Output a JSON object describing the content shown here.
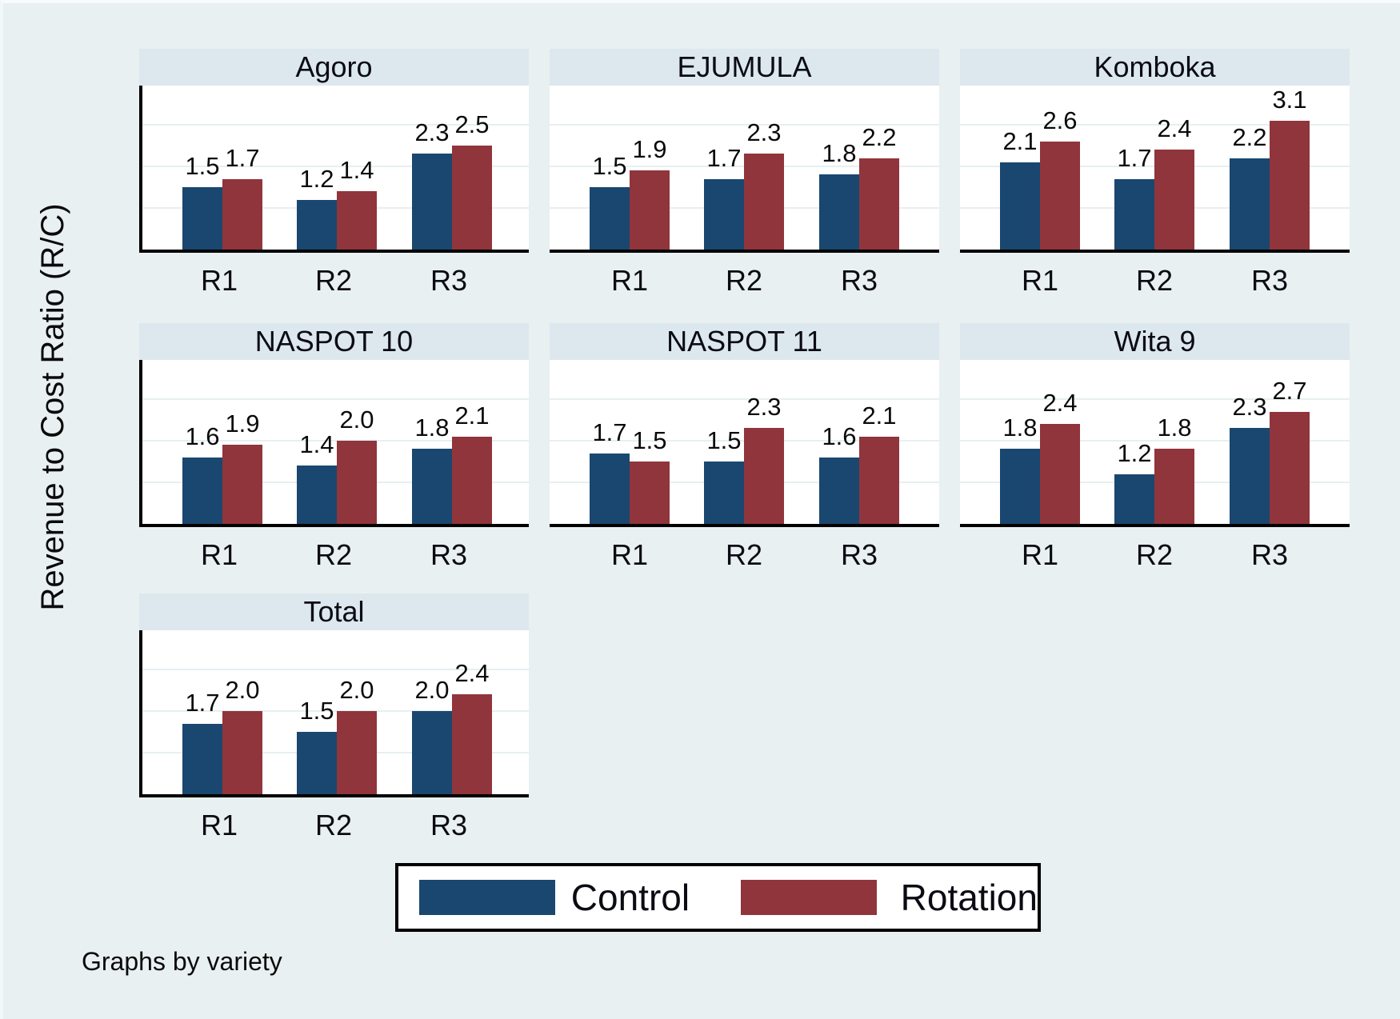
{
  "chart_data": {
    "type": "bar",
    "ylabel": "Revenue to Cost Ratio (R/C)",
    "note": "Graphs by variety",
    "categories": [
      "R1",
      "R2",
      "R3"
    ],
    "yticks": [
      0,
      1,
      2,
      3
    ],
    "ylim": [
      0,
      4
    ],
    "grid": true,
    "legend_position": "bottom",
    "series_names": [
      "Control",
      "Rotation"
    ],
    "colors": {
      "control": "#1a476f",
      "rotation": "#90353b"
    },
    "panels": [
      {
        "title": "Agoro",
        "control": [
          1.5,
          1.2,
          2.3
        ],
        "rotation": [
          1.7,
          1.4,
          2.5
        ]
      },
      {
        "title": "EJUMULA",
        "control": [
          1.5,
          1.7,
          1.8
        ],
        "rotation": [
          1.9,
          2.3,
          2.2
        ]
      },
      {
        "title": "Komboka",
        "control": [
          2.1,
          1.7,
          2.2
        ],
        "rotation": [
          2.6,
          2.4,
          3.1
        ]
      },
      {
        "title": "NASPOT 10",
        "control": [
          1.6,
          1.4,
          1.8
        ],
        "rotation": [
          1.9,
          2.0,
          2.1
        ]
      },
      {
        "title": "NASPOT 11",
        "control": [
          1.7,
          1.5,
          1.6
        ],
        "rotation": [
          1.5,
          2.3,
          2.1
        ]
      },
      {
        "title": "Wita 9",
        "control": [
          1.8,
          1.2,
          2.3
        ],
        "rotation": [
          2.4,
          1.8,
          2.7
        ]
      },
      {
        "title": "Total",
        "control": [
          1.7,
          1.5,
          2.0
        ],
        "rotation": [
          2.0,
          2.0,
          2.4
        ]
      }
    ]
  },
  "legend": {
    "items": [
      {
        "label": "Control",
        "color": "#1a476f"
      },
      {
        "label": "Rotation",
        "color": "#90353b"
      }
    ]
  }
}
